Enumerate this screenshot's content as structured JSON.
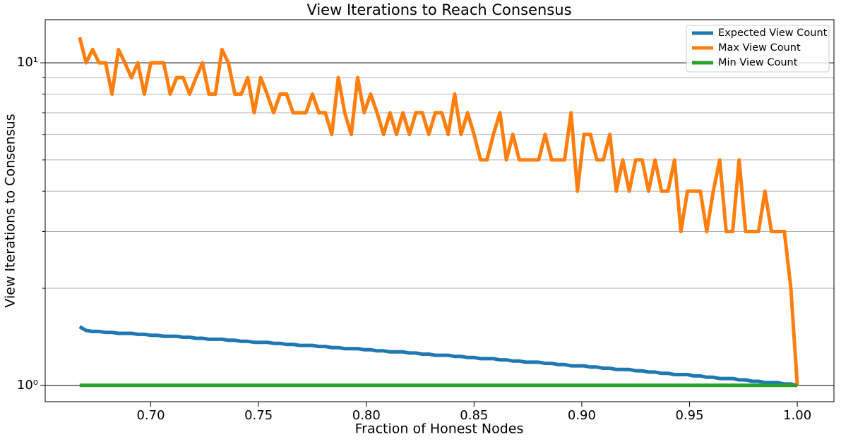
{
  "chart_data": {
    "type": "line",
    "title": "View Iterations to Reach Consensus",
    "xlabel": "Fraction of Honest Nodes",
    "ylabel": "View Iterations to Consensus",
    "x": [
      0.667,
      0.67,
      0.673,
      0.676,
      0.679,
      0.682,
      0.685,
      0.688,
      0.691,
      0.694,
      0.697,
      0.7,
      0.703,
      0.706,
      0.709,
      0.712,
      0.715,
      0.718,
      0.721,
      0.724,
      0.727,
      0.73,
      0.733,
      0.736,
      0.739,
      0.742,
      0.745,
      0.748,
      0.751,
      0.754,
      0.757,
      0.76,
      0.763,
      0.766,
      0.769,
      0.772,
      0.775,
      0.778,
      0.781,
      0.784,
      0.787,
      0.79,
      0.793,
      0.796,
      0.799,
      0.802,
      0.805,
      0.808,
      0.811,
      0.814,
      0.817,
      0.82,
      0.823,
      0.826,
      0.829,
      0.832,
      0.835,
      0.838,
      0.841,
      0.844,
      0.847,
      0.85,
      0.853,
      0.856,
      0.859,
      0.862,
      0.865,
      0.868,
      0.871,
      0.874,
      0.877,
      0.88,
      0.883,
      0.886,
      0.889,
      0.892,
      0.895,
      0.898,
      0.901,
      0.904,
      0.907,
      0.91,
      0.913,
      0.916,
      0.919,
      0.922,
      0.925,
      0.928,
      0.931,
      0.934,
      0.937,
      0.94,
      0.943,
      0.946,
      0.949,
      0.952,
      0.955,
      0.958,
      0.961,
      0.964,
      0.967,
      0.97,
      0.973,
      0.976,
      0.979,
      0.982,
      0.985,
      0.988,
      0.991,
      0.994,
      0.997,
      1.0
    ],
    "series": [
      {
        "name": "Expected View Count",
        "color": "#1f77b4",
        "values": [
          1.52,
          1.48,
          1.47,
          1.47,
          1.46,
          1.46,
          1.45,
          1.45,
          1.45,
          1.44,
          1.44,
          1.43,
          1.43,
          1.42,
          1.42,
          1.42,
          1.41,
          1.41,
          1.4,
          1.4,
          1.39,
          1.39,
          1.39,
          1.38,
          1.38,
          1.37,
          1.37,
          1.36,
          1.36,
          1.36,
          1.35,
          1.35,
          1.34,
          1.34,
          1.33,
          1.33,
          1.33,
          1.32,
          1.32,
          1.31,
          1.31,
          1.3,
          1.3,
          1.3,
          1.29,
          1.29,
          1.28,
          1.28,
          1.27,
          1.27,
          1.27,
          1.26,
          1.26,
          1.25,
          1.25,
          1.24,
          1.24,
          1.24,
          1.23,
          1.23,
          1.22,
          1.22,
          1.21,
          1.21,
          1.21,
          1.2,
          1.2,
          1.19,
          1.19,
          1.18,
          1.18,
          1.18,
          1.17,
          1.17,
          1.16,
          1.16,
          1.15,
          1.15,
          1.15,
          1.14,
          1.14,
          1.13,
          1.13,
          1.12,
          1.12,
          1.12,
          1.11,
          1.11,
          1.1,
          1.1,
          1.09,
          1.09,
          1.08,
          1.08,
          1.08,
          1.07,
          1.07,
          1.06,
          1.06,
          1.05,
          1.05,
          1.05,
          1.04,
          1.04,
          1.03,
          1.03,
          1.02,
          1.02,
          1.02,
          1.01,
          1.01,
          1.0
        ]
      },
      {
        "name": "Max View Count",
        "color": "#ff7f0e",
        "values": [
          12,
          10,
          11,
          10,
          10,
          8,
          11,
          10,
          9,
          10,
          8,
          10,
          10,
          10,
          8,
          9,
          9,
          8,
          9,
          10,
          8,
          8,
          11,
          10,
          8,
          8,
          9,
          7,
          9,
          8,
          7,
          8,
          8,
          7,
          7,
          7,
          8,
          7,
          7,
          6,
          9,
          7,
          6,
          9,
          7,
          8,
          7,
          6,
          7,
          6,
          7,
          6,
          7,
          7,
          6,
          7,
          7,
          6,
          8,
          6,
          7,
          6,
          5,
          5,
          6,
          7,
          5,
          6,
          5,
          5,
          5,
          5,
          6,
          5,
          5,
          5,
          7,
          4,
          6,
          6,
          5,
          5,
          6,
          4,
          5,
          4,
          5,
          5,
          4,
          5,
          4,
          4,
          5,
          3,
          4,
          4,
          4,
          3,
          4,
          5,
          3,
          3,
          5,
          3,
          3,
          3,
          4,
          3,
          3,
          3,
          2,
          1
        ]
      },
      {
        "name": "Min View Count",
        "color": "#2ca02c",
        "values": [
          1,
          1,
          1,
          1,
          1,
          1,
          1,
          1,
          1,
          1,
          1,
          1,
          1,
          1,
          1,
          1,
          1,
          1,
          1,
          1,
          1,
          1,
          1,
          1,
          1,
          1,
          1,
          1,
          1,
          1,
          1,
          1,
          1,
          1,
          1,
          1,
          1,
          1,
          1,
          1,
          1,
          1,
          1,
          1,
          1,
          1,
          1,
          1,
          1,
          1,
          1,
          1,
          1,
          1,
          1,
          1,
          1,
          1,
          1,
          1,
          1,
          1,
          1,
          1,
          1,
          1,
          1,
          1,
          1,
          1,
          1,
          1,
          1,
          1,
          1,
          1,
          1,
          1,
          1,
          1,
          1,
          1,
          1,
          1,
          1,
          1,
          1,
          1,
          1,
          1,
          1,
          1,
          1,
          1,
          1,
          1,
          1,
          1,
          1,
          1,
          1,
          1,
          1,
          1,
          1,
          1,
          1,
          1,
          1,
          1,
          1,
          1
        ]
      }
    ],
    "xlim": [
      0.651,
      1.017
    ],
    "xticks": [
      {
        "value": 0.7,
        "label": "0.70"
      },
      {
        "value": 0.75,
        "label": "0.75"
      },
      {
        "value": 0.8,
        "label": "0.80"
      },
      {
        "value": 0.85,
        "label": "0.85"
      },
      {
        "value": 0.9,
        "label": "0.90"
      },
      {
        "value": 0.95,
        "label": "0.95"
      },
      {
        "value": 1.0,
        "label": "1.00"
      }
    ],
    "ylim": [
      0.89,
      13.6
    ],
    "yscale": "log",
    "yticks": [
      {
        "value": 1,
        "label": "10⁰"
      },
      {
        "value": 10,
        "label": "10¹"
      }
    ],
    "yticks_minor": [
      2,
      3,
      4,
      5,
      6,
      7,
      8,
      9
    ],
    "grid": true,
    "legend": "upper right"
  }
}
